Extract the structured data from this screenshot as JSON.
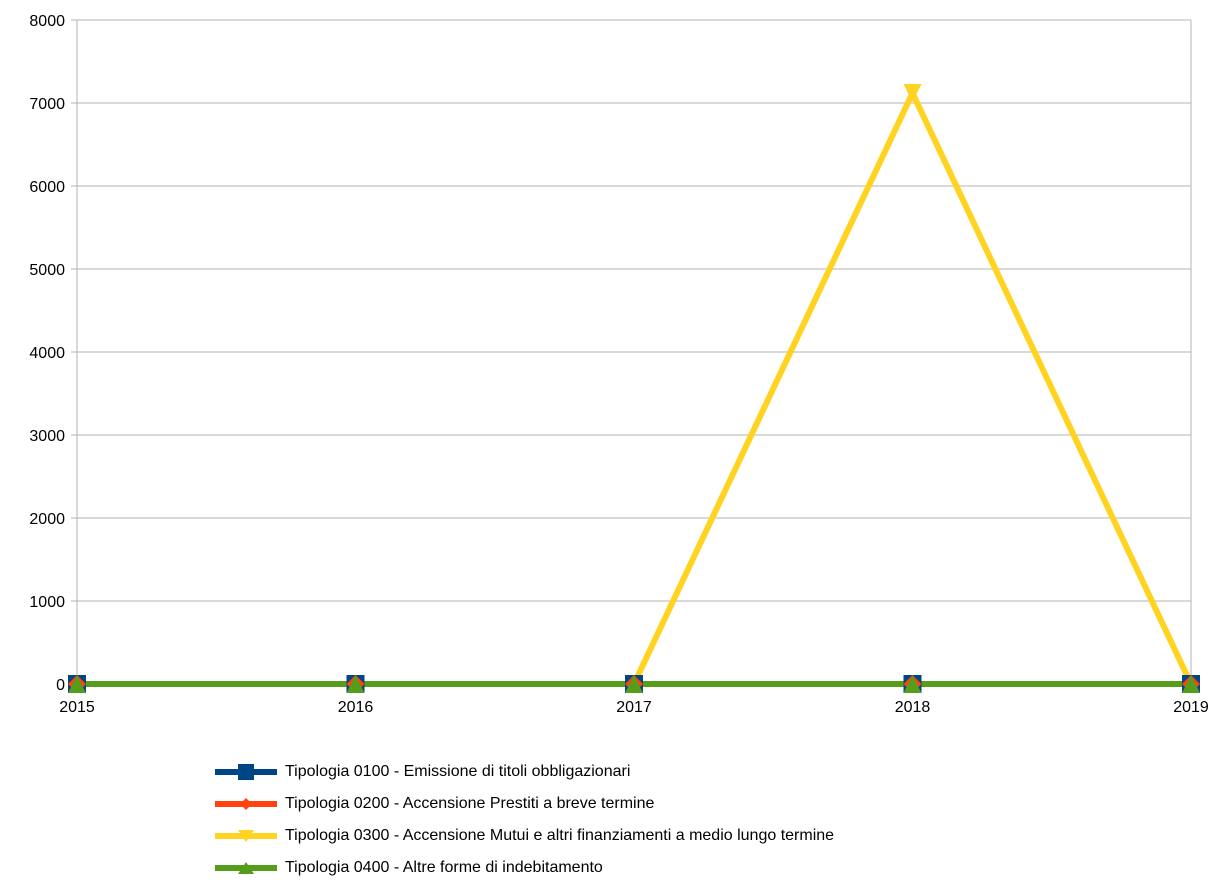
{
  "chart_data": {
    "type": "line",
    "title": "",
    "xlabel": "",
    "ylabel": "",
    "categories": [
      "2015",
      "2016",
      "2017",
      "2018",
      "2019"
    ],
    "ylim": [
      0,
      8000
    ],
    "yticks": [
      0,
      1000,
      2000,
      3000,
      4000,
      5000,
      6000,
      7000,
      8000
    ],
    "grid": true,
    "legend_position": "bottom",
    "series": [
      {
        "name": "Tipologia 0100 - Emissione di titoli obbligazionari",
        "values": [
          0,
          0,
          0,
          0,
          0
        ],
        "color": "#004586",
        "marker": "square"
      },
      {
        "name": "Tipologia 0200 - Accensione Prestiti a breve termine",
        "values": [
          0,
          0,
          0,
          0,
          0
        ],
        "color": "#ff420e",
        "marker": "diamond"
      },
      {
        "name": "Tipologia 0300 - Accensione Mutui e altri finanziamenti a medio lungo termine",
        "values": [
          0,
          0,
          0,
          7120,
          0
        ],
        "color": "#ffd320",
        "marker": "triangle-down"
      },
      {
        "name": "Tipologia 0400 - Altre forme di indebitamento",
        "values": [
          0,
          0,
          0,
          0,
          0
        ],
        "color": "#579d1c",
        "marker": "triangle-up"
      }
    ]
  }
}
